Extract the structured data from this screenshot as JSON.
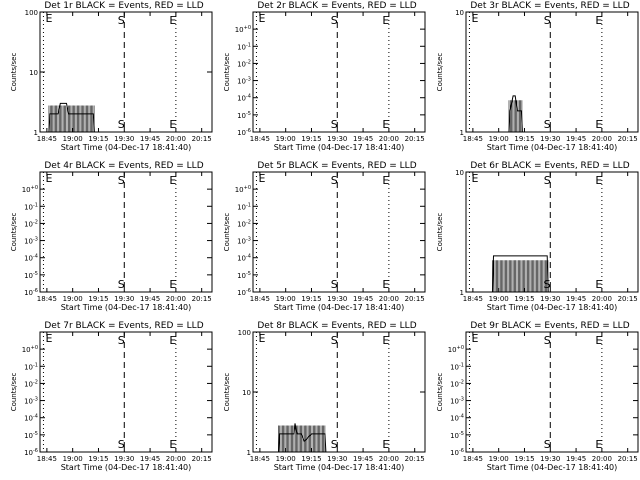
{
  "figure": {
    "background": "#ffffff",
    "foreground": "#000000"
  },
  "chart_data": [
    {
      "type": "line",
      "title": "Det 1r BLACK = Events, RED = LLD",
      "xlabel": "Start Time (04-Dec-17 18:41:40)",
      "ylabel": "Counts/sec",
      "xticks": [
        "18:45",
        "19:00",
        "19:15",
        "19:30",
        "19:45",
        "20:00",
        "20:15"
      ],
      "yscale": "log",
      "ylim": [
        1,
        100
      ],
      "yticks": [
        {
          "v": 1,
          "t": "1"
        },
        {
          "v": 10,
          "t": "10"
        },
        {
          "v": 100,
          "t": "100"
        }
      ],
      "markers": [
        {
          "label": "E",
          "x": "18:43",
          "style": "dotted"
        },
        {
          "label": "S",
          "x": "19:30",
          "style": "dashed"
        },
        {
          "label": "E",
          "x": "20:00",
          "style": "dotted"
        }
      ],
      "series": [
        {
          "color": "#000000",
          "values": [
            [
              18.77,
              1
            ],
            [
              18.78,
              2
            ],
            [
              18.86,
              2
            ],
            [
              18.88,
              3
            ],
            [
              18.94,
              3
            ],
            [
              18.96,
              2
            ],
            [
              19.2,
              2
            ],
            [
              19.21,
              1
            ]
          ]
        }
      ]
    },
    {
      "type": "line",
      "title": "Det 2r BLACK = Events, RED = LLD",
      "xlabel": "Start Time (04-Dec-17 18:41:40)",
      "ylabel": "Counts/sec",
      "xticks": [
        "18:45",
        "19:00",
        "19:15",
        "19:30",
        "19:45",
        "20:00",
        "20:15"
      ],
      "yscale": "log",
      "ylim": [
        1e-06,
        10
      ],
      "yticks": [
        {
          "v": 1e-06,
          "t": "10-6"
        },
        {
          "v": 1e-05,
          "t": "10-5"
        },
        {
          "v": 0.0001,
          "t": "10-4"
        },
        {
          "v": 0.001,
          "t": "10-3"
        },
        {
          "v": 0.01,
          "t": "10-2"
        },
        {
          "v": 0.1,
          "t": "10-1"
        },
        {
          "v": 1,
          "t": "10+0"
        }
      ],
      "markers": [
        {
          "label": "E",
          "x": "18:43",
          "style": "dotted"
        },
        {
          "label": "S",
          "x": "19:30",
          "style": "dashed"
        },
        {
          "label": "E",
          "x": "20:00",
          "style": "dotted"
        }
      ],
      "series": []
    },
    {
      "type": "line",
      "title": "Det 3r BLACK = Events, RED = LLD",
      "xlabel": "Start Time (04-Dec-17 18:41:40)",
      "ylabel": "Counts/sec",
      "xticks": [
        "18:45",
        "19:00",
        "19:15",
        "19:30",
        "19:45",
        "20:00",
        "20:15"
      ],
      "yscale": "log",
      "ylim": [
        1,
        10
      ],
      "yticks": [
        {
          "v": 1,
          "t": "1"
        },
        {
          "v": 10,
          "t": "10"
        }
      ],
      "markers": [
        {
          "label": "E",
          "x": "18:43",
          "style": "dotted"
        },
        {
          "label": "S",
          "x": "19:30",
          "style": "dashed"
        },
        {
          "label": "E",
          "x": "20:00",
          "style": "dotted"
        }
      ],
      "series": [
        {
          "color": "#000000",
          "values": [
            [
              19.1,
              1
            ],
            [
              19.11,
              1.5
            ],
            [
              19.14,
              2
            ],
            [
              19.16,
              2
            ],
            [
              19.18,
              1.5
            ],
            [
              19.22,
              1.5
            ],
            [
              19.23,
              1
            ]
          ]
        }
      ]
    },
    {
      "type": "line",
      "title": "Det 4r BLACK = Events, RED = LLD",
      "xlabel": "Start Time (04-Dec-17 18:41:40)",
      "ylabel": "Counts/sec",
      "xticks": [
        "18:45",
        "19:00",
        "19:15",
        "19:30",
        "19:45",
        "20:00",
        "20:15"
      ],
      "yscale": "log",
      "ylim": [
        1e-06,
        10
      ],
      "yticks": [
        {
          "v": 1e-06,
          "t": "10-6"
        },
        {
          "v": 1e-05,
          "t": "10-5"
        },
        {
          "v": 0.0001,
          "t": "10-4"
        },
        {
          "v": 0.001,
          "t": "10-3"
        },
        {
          "v": 0.01,
          "t": "10-2"
        },
        {
          "v": 0.1,
          "t": "10-1"
        },
        {
          "v": 1,
          "t": "10+0"
        }
      ],
      "markers": [
        {
          "label": "E",
          "x": "18:43",
          "style": "dotted"
        },
        {
          "label": "S",
          "x": "19:30",
          "style": "dashed"
        },
        {
          "label": "E",
          "x": "20:00",
          "style": "dotted"
        }
      ],
      "series": []
    },
    {
      "type": "line",
      "title": "Det 5r BLACK = Events, RED = LLD",
      "xlabel": "Start Time (04-Dec-17 18:41:40)",
      "ylabel": "Counts/sec",
      "xticks": [
        "18:45",
        "19:00",
        "19:15",
        "19:30",
        "19:45",
        "20:00",
        "20:15"
      ],
      "yscale": "log",
      "ylim": [
        1e-06,
        10
      ],
      "yticks": [
        {
          "v": 1e-06,
          "t": "10-6"
        },
        {
          "v": 1e-05,
          "t": "10-5"
        },
        {
          "v": 0.0001,
          "t": "10-4"
        },
        {
          "v": 0.001,
          "t": "10-3"
        },
        {
          "v": 0.01,
          "t": "10-2"
        },
        {
          "v": 0.1,
          "t": "10-1"
        },
        {
          "v": 1,
          "t": "10+0"
        }
      ],
      "markers": [
        {
          "label": "E",
          "x": "18:43",
          "style": "dotted"
        },
        {
          "label": "S",
          "x": "19:30",
          "style": "dashed"
        },
        {
          "label": "E",
          "x": "20:00",
          "style": "dotted"
        }
      ],
      "series": []
    },
    {
      "type": "line",
      "title": "Det 6r BLACK = Events, RED = LLD",
      "xlabel": "Start Time (04-Dec-17 18:41:40)",
      "ylabel": "Counts/sec",
      "xticks": [
        "18:45",
        "19:00",
        "19:15",
        "19:30",
        "19:45",
        "20:00",
        "20:15"
      ],
      "yscale": "log",
      "ylim": [
        1,
        10
      ],
      "yticks": [
        {
          "v": 1,
          "t": "1"
        },
        {
          "v": 10,
          "t": "10"
        }
      ],
      "markers": [
        {
          "label": "E",
          "x": "18:43",
          "style": "dotted"
        },
        {
          "label": "S",
          "x": "19:30",
          "style": "dashed"
        },
        {
          "label": "E",
          "x": "20:00",
          "style": "dotted"
        }
      ],
      "series": [
        {
          "color": "#000000",
          "values": [
            [
              18.94,
              1
            ],
            [
              18.95,
              2
            ],
            [
              19.47,
              2
            ],
            [
              19.48,
              1
            ]
          ]
        }
      ]
    },
    {
      "type": "line",
      "title": "Det 7r BLACK = Events, RED = LLD",
      "xlabel": "Start Time (04-Dec-17 18:41:40)",
      "ylabel": "Counts/sec",
      "xticks": [
        "18:45",
        "19:00",
        "19:15",
        "19:30",
        "19:45",
        "20:00",
        "20:15"
      ],
      "yscale": "log",
      "ylim": [
        1e-06,
        10
      ],
      "yticks": [
        {
          "v": 1e-06,
          "t": "10-6"
        },
        {
          "v": 1e-05,
          "t": "10-5"
        },
        {
          "v": 0.0001,
          "t": "10-4"
        },
        {
          "v": 0.001,
          "t": "10-3"
        },
        {
          "v": 0.01,
          "t": "10-2"
        },
        {
          "v": 0.1,
          "t": "10-1"
        },
        {
          "v": 1,
          "t": "10+0"
        }
      ],
      "markers": [
        {
          "label": "E",
          "x": "18:43",
          "style": "dotted"
        },
        {
          "label": "S",
          "x": "19:30",
          "style": "dashed"
        },
        {
          "label": "E",
          "x": "20:00",
          "style": "dotted"
        }
      ],
      "series": []
    },
    {
      "type": "line",
      "title": "Det 8r BLACK = Events, RED = LLD",
      "xlabel": "Start Time (04-Dec-17 18:41:40)",
      "ylabel": "Counts/sec",
      "xticks": [
        "18:45",
        "19:00",
        "19:15",
        "19:30",
        "19:45",
        "20:00",
        "20:15"
      ],
      "yscale": "log",
      "ylim": [
        1,
        100
      ],
      "yticks": [
        {
          "v": 1,
          "t": "1"
        },
        {
          "v": 10,
          "t": "10"
        },
        {
          "v": 100,
          "t": "100"
        }
      ],
      "markers": [
        {
          "label": "E",
          "x": "18:43",
          "style": "dotted"
        },
        {
          "label": "S",
          "x": "19:30",
          "style": "dashed"
        },
        {
          "label": "E",
          "x": "20:00",
          "style": "dotted"
        }
      ],
      "series": [
        {
          "color": "#000000",
          "values": [
            [
              18.93,
              1
            ],
            [
              18.94,
              2
            ],
            [
              19.08,
              2
            ],
            [
              19.09,
              3
            ],
            [
              19.11,
              2
            ],
            [
              19.15,
              2
            ],
            [
              19.18,
              1.5
            ],
            [
              19.25,
              2
            ],
            [
              19.38,
              2
            ],
            [
              19.39,
              1
            ]
          ]
        }
      ]
    },
    {
      "type": "line",
      "title": "Det 9r BLACK = Events, RED = LLD",
      "xlabel": "Start Time (04-Dec-17 18:41:40)",
      "ylabel": "Counts/sec",
      "xticks": [
        "18:45",
        "19:00",
        "19:15",
        "19:30",
        "19:45",
        "20:00",
        "20:15"
      ],
      "yscale": "log",
      "ylim": [
        1e-06,
        10
      ],
      "yticks": [
        {
          "v": 1e-06,
          "t": "10-6"
        },
        {
          "v": 1e-05,
          "t": "10-5"
        },
        {
          "v": 0.0001,
          "t": "10-4"
        },
        {
          "v": 0.001,
          "t": "10-3"
        },
        {
          "v": 0.01,
          "t": "10-2"
        },
        {
          "v": 0.1,
          "t": "10-1"
        },
        {
          "v": 1,
          "t": "10+0"
        }
      ],
      "markers": [
        {
          "label": "E",
          "x": "18:43",
          "style": "dotted"
        },
        {
          "label": "S",
          "x": "19:30",
          "style": "dashed"
        },
        {
          "label": "E",
          "x": "20:00",
          "style": "dotted"
        }
      ],
      "series": []
    }
  ]
}
